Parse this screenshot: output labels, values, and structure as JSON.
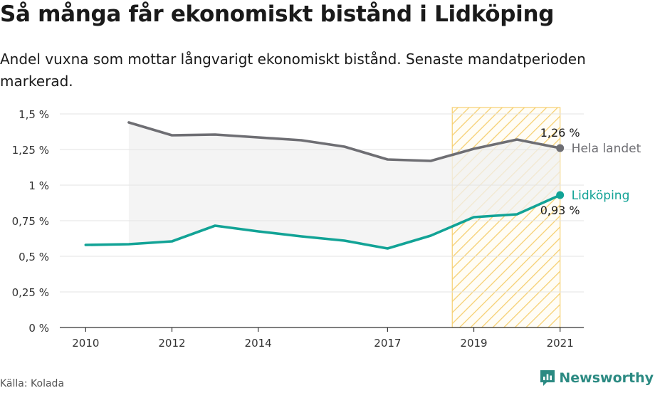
{
  "header": {
    "title": "Så många får ekonomiskt bistånd i Lidköping",
    "subtitle": "Andel vuxna som mottar långvarigt ekonomiskt bistånd. Senaste mandatperioden markerad."
  },
  "footer": {
    "source": "Källa: Kolada",
    "brand": "Newsworthy"
  },
  "colors": {
    "national": "#6e6e73",
    "local": "#12a396",
    "highlight": "#f5c85a",
    "band": "#f0f0f0"
  },
  "chart_data": {
    "type": "line",
    "x": [
      2010,
      2011,
      2012,
      2013,
      2014,
      2015,
      2016,
      2017,
      2018,
      2019,
      2020,
      2021
    ],
    "x_tick_labels": [
      "2010",
      "2012",
      "2014",
      "2017",
      "2019",
      "2021"
    ],
    "x_ticks": [
      2010,
      2012,
      2014,
      2017,
      2019,
      2021
    ],
    "y_tick_labels": [
      "0 %",
      "0,25 %",
      "0,5 %",
      "0,75 %",
      "1 %",
      "1,25 %",
      "1,5 %"
    ],
    "y_ticks": [
      0,
      0.25,
      0.5,
      0.75,
      1,
      1.25,
      1.5
    ],
    "xlim": [
      2009.4,
      2021.55
    ],
    "ylim": [
      0,
      1.6
    ],
    "grid": "horizontal",
    "highlight_range": [
      2018.5,
      2021
    ],
    "series": [
      {
        "name": "Hela landet",
        "values": [
          null,
          1.44,
          1.35,
          1.355,
          1.335,
          1.315,
          1.27,
          1.18,
          1.17,
          1.255,
          1.32,
          1.26
        ],
        "end_label": "1,26 %"
      },
      {
        "name": "Lidköping",
        "values": [
          0.58,
          0.585,
          0.605,
          0.715,
          0.675,
          0.64,
          0.61,
          0.555,
          0.645,
          0.775,
          0.795,
          0.93
        ],
        "end_label": "0,93 %"
      }
    ]
  }
}
